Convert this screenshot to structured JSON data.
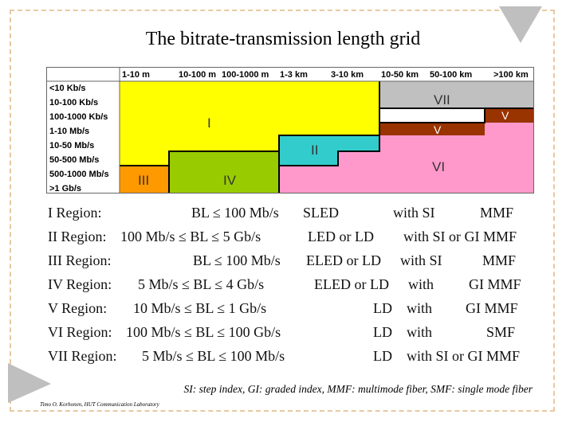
{
  "title": "The bitrate-transmission length grid",
  "grid": {
    "distances": [
      "1-10 m",
      "10-100 m",
      "100-1000 m",
      "1-3 km",
      "3-10 km",
      "10-50 km",
      "50-100 km",
      ">100 km"
    ],
    "bitrates": [
      "<10 Kb/s",
      "10-100 Kb/s",
      "100-1000 Kb/s",
      "1-10 Mb/s",
      "10-50 Mb/s",
      "50-500 Mb/s",
      "500-1000 Mb/s",
      ">1 Gb/s"
    ],
    "region_labels": [
      "I",
      "II",
      "III",
      "IV",
      "V",
      "VI",
      "VII",
      "V"
    ],
    "colors": {
      "I": "#ffff00",
      "II": "#33cccc",
      "III": "#ff9900",
      "IV": "#99cc00",
      "V": "#993300",
      "VI": "#ff99cc",
      "VII": "#c0c0c0"
    }
  },
  "regions": [
    {
      "name": "I Region:",
      "range": "BL ≤ 100 Mb/s",
      "source": "SLED",
      "coupling": "with SI",
      "fiber": "MMF"
    },
    {
      "name": "II Region:",
      "range": "100 Mb/s ≤ BL ≤  5 Gb/s",
      "source": "LED or LD",
      "coupling": "with SI or GI MMF",
      "fiber": ""
    },
    {
      "name": "III Region:",
      "range": "BL ≤  100 Mb/s",
      "source": "ELED or LD",
      "coupling": "with SI",
      "fiber": "MMF"
    },
    {
      "name": "IV Region:",
      "range": "5 Mb/s ≤ BL ≤  4 Gb/s",
      "source": "ELED or LD",
      "coupling": "with",
      "fiber": "GI MMF"
    },
    {
      "name": "V  Region:",
      "range": "10 Mb/s ≤ BL ≤  1 Gb/s",
      "source": "LD",
      "coupling": "with",
      "fiber": "GI MMF"
    },
    {
      "name": "VI Region:",
      "range": "100 Mb/s ≤ BL ≤  100 Gb/s",
      "source": "LD",
      "coupling": "with",
      "fiber": "SMF"
    },
    {
      "name": "VII Region:",
      "range": "5 Mb/s ≤ BL ≤  100 Mb/s",
      "source": "LD",
      "coupling": "with SI or GI MMF",
      "fiber": ""
    }
  ],
  "footnote": "SI: step index, GI: graded index, MMF: multimode fiber, SMF: single mode fiber",
  "credit": "Timo O. Korhonen, HUT Communication Laboratory"
}
